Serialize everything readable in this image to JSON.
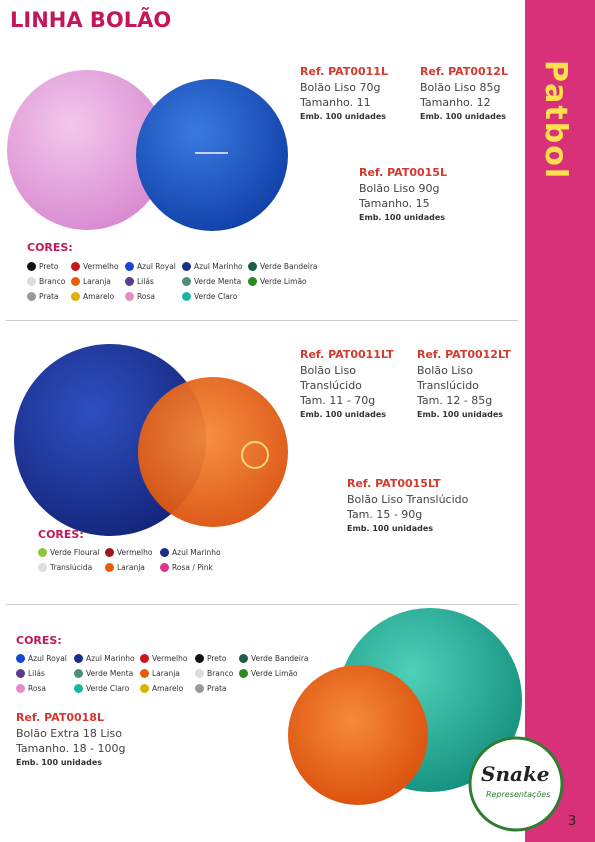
{
  "header": {
    "title": "LINHA BOLÃO"
  },
  "sections": [
    {
      "products": [
        {
          "ref": "Ref. PAT0011L",
          "lines": [
            "Bolão Liso 70g",
            "Tamanho. 11"
          ],
          "pack": "Emb. 100 unidades"
        },
        {
          "ref": "Ref. PAT0012L",
          "lines": [
            "Bolão Liso 85g",
            "Tamanho. 12"
          ],
          "pack": "Emb. 100 unidades"
        },
        {
          "ref": "Ref. PAT0015L",
          "lines": [
            "Bolão Liso 90g",
            "Tamanho. 15"
          ],
          "pack": "Emb. 100 unidades"
        }
      ],
      "colors_title": "CORES:",
      "colors": [
        {
          "name": "Preto",
          "color": "#111111"
        },
        {
          "name": "Vermelho",
          "color": "#c8161d"
        },
        {
          "name": "Azul Royal",
          "color": "#1646d8"
        },
        {
          "name": "Azul Marinho",
          "color": "#1b2f8a"
        },
        {
          "name": "Verde Bandeira",
          "color": "#1d5e45"
        },
        {
          "name": "Branco",
          "color": "#dddddd"
        },
        {
          "name": "Laranja",
          "color": "#e85d0c"
        },
        {
          "name": "Lilás",
          "color": "#5a3d8c"
        },
        {
          "name": "Verde Menta",
          "color": "#4f8f7a"
        },
        {
          "name": "Verde Limão",
          "color": "#2a8a1f"
        },
        {
          "name": "Prata",
          "color": "#9a9a9a"
        },
        {
          "name": "Amarelo",
          "color": "#e0b000"
        },
        {
          "name": "Rosa",
          "color": "#e88ac8"
        },
        {
          "name": "Verde Claro",
          "color": "#16b8a0"
        }
      ]
    },
    {
      "products": [
        {
          "ref": "Ref. PAT0011LT",
          "lines": [
            "Bolão Liso",
            "Translúcido",
            "Tam. 11 - 70g"
          ],
          "pack": "Emb. 100 unidades"
        },
        {
          "ref": "Ref. PAT0012LT",
          "lines": [
            "Bolão Liso",
            "Translúcido",
            "Tam. 12 - 85g"
          ],
          "pack": "Emb. 100 unidades"
        },
        {
          "ref": "Ref. PAT0015LT",
          "lines": [
            "Bolão Liso Translúcido",
            "Tam. 15 - 90g"
          ],
          "pack": "Emb. 100 unidades"
        }
      ],
      "colors_title": "CORES:",
      "colors": [
        {
          "name": "Verde Floural",
          "color": "#8cc43a"
        },
        {
          "name": "Vermelho",
          "color": "#a01820"
        },
        {
          "name": "Azul Marinho",
          "color": "#1b2f8a"
        },
        {
          "name": "Translúcida",
          "color": "#dddddd"
        },
        {
          "name": "Laranja",
          "color": "#e85d0c"
        },
        {
          "name": "Rosa / Pink",
          "color": "#e0338a"
        }
      ]
    },
    {
      "products": [
        {
          "ref": "Ref. PAT0018L",
          "lines": [
            "Bolão Extra 18 Liso",
            "Tamanho. 18 - 100g"
          ],
          "pack": "Emb. 100 unidades"
        }
      ],
      "colors_title": "CORES:",
      "colors": [
        {
          "name": "Azul Royal",
          "color": "#1646d8"
        },
        {
          "name": "Azul Marinho",
          "color": "#1b2f8a"
        },
        {
          "name": "Vermelho",
          "color": "#c8161d"
        },
        {
          "name": "Preto",
          "color": "#111111"
        },
        {
          "name": "Verde Bandeira",
          "color": "#1d5e45"
        },
        {
          "name": "Lilás",
          "color": "#5a3d8c"
        },
        {
          "name": "Verde Menta",
          "color": "#4f8f7a"
        },
        {
          "name": "Laranja",
          "color": "#e85d0c"
        },
        {
          "name": "Branco",
          "color": "#dddddd"
        },
        {
          "name": "Verde Limão",
          "color": "#2a8a1f"
        },
        {
          "name": "Rosa",
          "color": "#e88ac8"
        },
        {
          "name": "Verde Claro",
          "color": "#16b8a0"
        },
        {
          "name": "Amarelo",
          "color": "#e0b000"
        },
        {
          "name": "Prata",
          "color": "#9a9a9a"
        }
      ]
    }
  ],
  "sidebar": {
    "brand": "Patbol"
  },
  "logo": {
    "name": "Snake",
    "subtitle": "Representações"
  },
  "page_number": "3"
}
